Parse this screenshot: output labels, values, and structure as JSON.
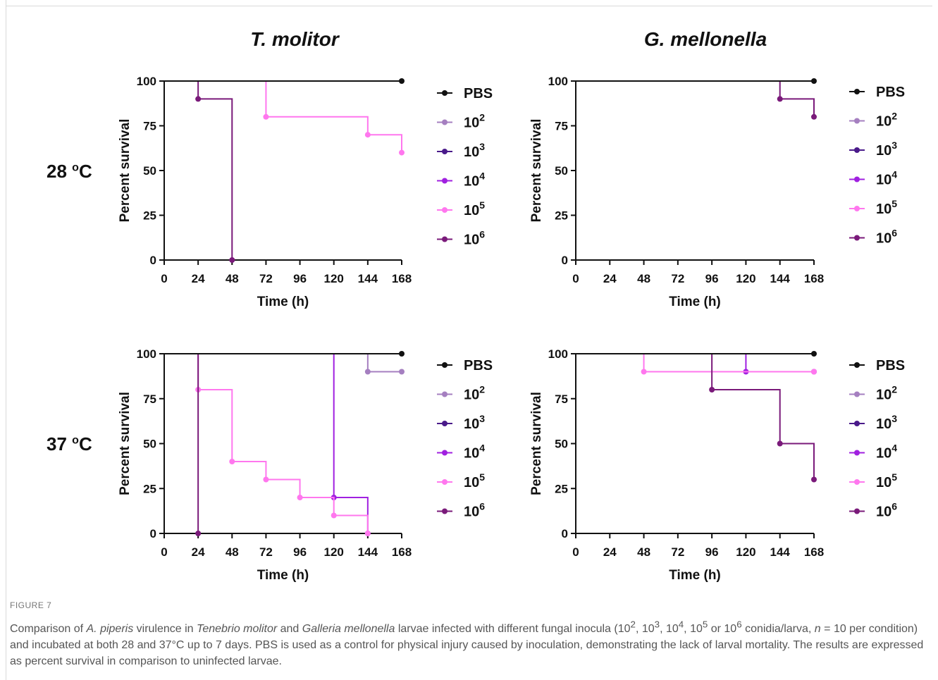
{
  "column_titles": [
    "T. molitor",
    "G. mellonella"
  ],
  "row_labels": [
    {
      "value": "28 ",
      "sup": "o",
      "unit": "C"
    },
    {
      "value": "37 ",
      "sup": "o",
      "unit": "C"
    }
  ],
  "legend": [
    {
      "label": "PBS",
      "base": "PBS",
      "exp": ""
    },
    {
      "label": "10^2",
      "base": "10",
      "exp": "2"
    },
    {
      "label": "10^3",
      "base": "10",
      "exp": "3"
    },
    {
      "label": "10^4",
      "base": "10",
      "exp": "4"
    },
    {
      "label": "10^5",
      "base": "10",
      "exp": "5"
    },
    {
      "label": "10^6",
      "base": "10",
      "exp": "6"
    }
  ],
  "colors": {
    "PBS": "#111111",
    "10^2": "#a57fc0",
    "10^3": "#4a1a8a",
    "10^4": "#a020e0",
    "10^5": "#ff77ee",
    "10^6": "#7a1a7a"
  },
  "chart_data": [
    {
      "type": "line",
      "step": true,
      "title": "T. molitor",
      "row": "28 oC",
      "xlabel": "Time (h)",
      "ylabel": "Percent survival",
      "xlim": [
        0,
        168
      ],
      "ylim": [
        0,
        100
      ],
      "xticks": [
        0,
        24,
        48,
        72,
        96,
        120,
        144,
        168
      ],
      "yticks": [
        0,
        25,
        50,
        75,
        100
      ],
      "series": [
        {
          "name": "PBS",
          "x": [
            0,
            168
          ],
          "y": [
            100,
            100
          ],
          "markers": [
            [
              168,
              100
            ]
          ]
        },
        {
          "name": "10^5",
          "x": [
            0,
            72,
            144,
            168
          ],
          "y": [
            100,
            80,
            70,
            60
          ],
          "markers": [
            [
              72,
              80
            ],
            [
              144,
              70
            ],
            [
              168,
              60
            ]
          ]
        },
        {
          "name": "10^6",
          "x": [
            0,
            24,
            48
          ],
          "y": [
            100,
            90,
            0
          ],
          "markers": [
            [
              24,
              90
            ],
            [
              48,
              0
            ]
          ]
        }
      ]
    },
    {
      "type": "line",
      "step": true,
      "title": "G. mellonella",
      "row": "28 oC",
      "xlabel": "Time (h)",
      "ylabel": "Percent survival",
      "xlim": [
        0,
        168
      ],
      "ylim": [
        0,
        100
      ],
      "xticks": [
        0,
        24,
        48,
        72,
        96,
        120,
        144,
        168
      ],
      "yticks": [
        0,
        25,
        50,
        75,
        100
      ],
      "series": [
        {
          "name": "PBS",
          "x": [
            0,
            168
          ],
          "y": [
            100,
            100
          ],
          "markers": [
            [
              168,
              100
            ]
          ]
        },
        {
          "name": "10^6",
          "x": [
            0,
            144,
            168
          ],
          "y": [
            100,
            90,
            80
          ],
          "markers": [
            [
              144,
              90
            ],
            [
              168,
              80
            ]
          ]
        }
      ]
    },
    {
      "type": "line",
      "step": true,
      "title": "T. molitor",
      "row": "37 oC",
      "xlabel": "Time (h)",
      "ylabel": "Percent survival",
      "xlim": [
        0,
        168
      ],
      "ylim": [
        0,
        100
      ],
      "xticks": [
        0,
        24,
        48,
        72,
        96,
        120,
        144,
        168
      ],
      "yticks": [
        0,
        25,
        50,
        75,
        100
      ],
      "series": [
        {
          "name": "PBS",
          "x": [
            0,
            168
          ],
          "y": [
            100,
            100
          ],
          "markers": [
            [
              168,
              100
            ]
          ]
        },
        {
          "name": "10^2",
          "x": [
            0,
            144,
            168
          ],
          "y": [
            100,
            90,
            90
          ],
          "markers": [
            [
              144,
              90
            ],
            [
              168,
              90
            ]
          ]
        },
        {
          "name": "10^4",
          "x": [
            0,
            120,
            144
          ],
          "y": [
            100,
            20,
            0
          ],
          "markers": [
            [
              120,
              20
            ],
            [
              144,
              0
            ]
          ]
        },
        {
          "name": "10^5",
          "x": [
            0,
            24,
            48,
            72,
            96,
            120,
            144
          ],
          "y": [
            100,
            80,
            40,
            30,
            20,
            10,
            0
          ],
          "markers": [
            [
              24,
              80
            ],
            [
              48,
              40
            ],
            [
              72,
              30
            ],
            [
              96,
              20
            ],
            [
              120,
              10
            ],
            [
              144,
              0
            ]
          ]
        },
        {
          "name": "10^6",
          "x": [
            0,
            24
          ],
          "y": [
            100,
            0
          ],
          "markers": [
            [
              24,
              0
            ]
          ]
        }
      ]
    },
    {
      "type": "line",
      "step": true,
      "title": "G. mellonella",
      "row": "37 oC",
      "xlabel": "Time (h)",
      "ylabel": "Percent survival",
      "xlim": [
        0,
        168
      ],
      "ylim": [
        0,
        100
      ],
      "xticks": [
        0,
        24,
        48,
        72,
        96,
        120,
        144,
        168
      ],
      "yticks": [
        0,
        25,
        50,
        75,
        100
      ],
      "series": [
        {
          "name": "PBS",
          "x": [
            0,
            168
          ],
          "y": [
            100,
            100
          ],
          "markers": [
            [
              168,
              100
            ]
          ]
        },
        {
          "name": "10^4",
          "x": [
            0,
            120,
            168
          ],
          "y": [
            100,
            90,
            90
          ],
          "markers": [
            [
              120,
              90
            ],
            [
              168,
              90
            ]
          ]
        },
        {
          "name": "10^5",
          "x": [
            0,
            48,
            168
          ],
          "y": [
            100,
            90,
            90
          ],
          "markers": [
            [
              48,
              90
            ],
            [
              168,
              90
            ]
          ]
        },
        {
          "name": "10^6",
          "x": [
            0,
            96,
            144,
            168
          ],
          "y": [
            100,
            80,
            50,
            30
          ],
          "markers": [
            [
              96,
              80
            ],
            [
              144,
              50
            ],
            [
              168,
              30
            ]
          ]
        }
      ]
    }
  ],
  "caption": {
    "label": "FIGURE 7",
    "parts": [
      {
        "t": "Comparison of ",
        "i": false
      },
      {
        "t": "A. piperis",
        "i": true
      },
      {
        "t": " virulence in ",
        "i": false
      },
      {
        "t": "Tenebrio molitor",
        "i": true
      },
      {
        "t": " and ",
        "i": false
      },
      {
        "t": "Galleria mellonella",
        "i": true
      },
      {
        "t": " larvae infected with different fungal inocula (10",
        "i": false
      },
      {
        "t": "2",
        "sup": true
      },
      {
        "t": ", 10",
        "i": false
      },
      {
        "t": "3",
        "sup": true
      },
      {
        "t": ", 10",
        "i": false
      },
      {
        "t": "4",
        "sup": true
      },
      {
        "t": ", 10",
        "i": false
      },
      {
        "t": "5",
        "sup": true
      },
      {
        "t": " or 10",
        "i": false
      },
      {
        "t": "6",
        "sup": true
      },
      {
        "t": " conidia/larva, ",
        "i": false
      },
      {
        "t": "n",
        "i": true
      },
      {
        "t": " = 10 per condition) and incubated at both 28 and 37°C up to 7 days. PBS is used as a control for physical injury caused by inoculation, demonstrating the lack of larval mortality. The results are expressed as percent survival in comparison to uninfected larvae.",
        "i": false
      }
    ]
  }
}
